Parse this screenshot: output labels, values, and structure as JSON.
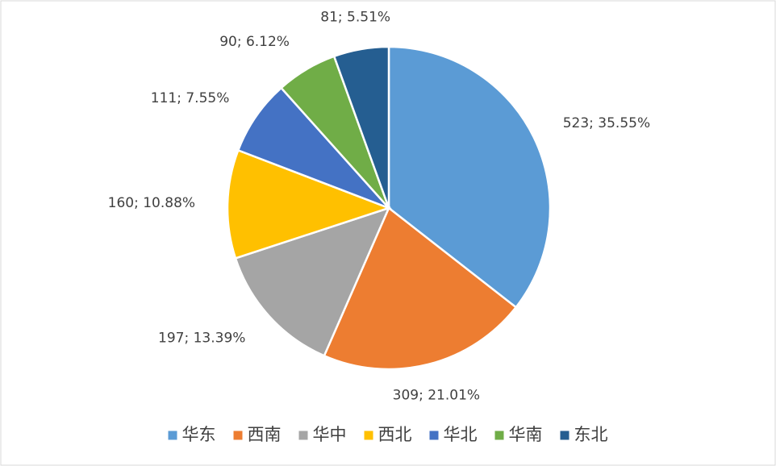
{
  "chart_data": {
    "type": "pie",
    "categories": [
      "华东",
      "西南",
      "华中",
      "西北",
      "华北",
      "华南",
      "东北"
    ],
    "values": [
      523,
      309,
      197,
      160,
      111,
      90,
      81
    ],
    "value_labels": [
      "523; 35.55%",
      "309; 21.01%",
      "197; 13.39%",
      "160; 10.88%",
      "111; 7.55%",
      "90; 6.12%",
      "81; 5.51%"
    ],
    "colors": [
      "#5b9bd5",
      "#ed7d31",
      "#a5a5a5",
      "#ffc000",
      "#4472c4",
      "#70ad47",
      "#255e91"
    ],
    "legend": "bottom"
  }
}
